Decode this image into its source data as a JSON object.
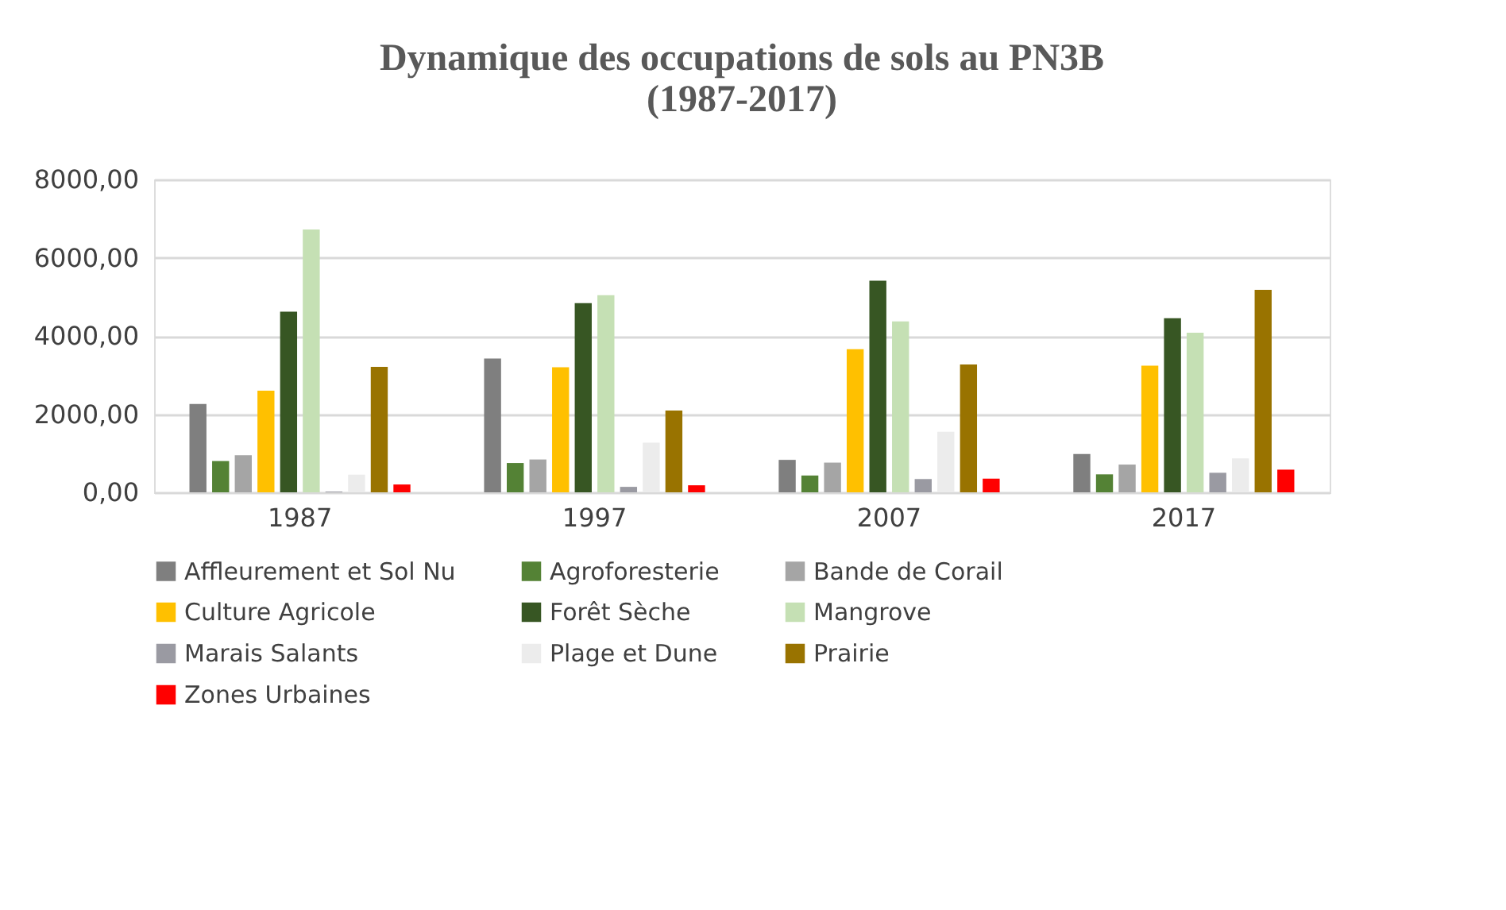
{
  "chart_data": {
    "type": "bar",
    "title": "Dynamique des occupations de sols au PN3B\n(1987-2017)",
    "categories": [
      "1987",
      "1997",
      "2007",
      "2017"
    ],
    "series": [
      {
        "name": "Affleurement et Sol Nu",
        "color": "#7f7f7f",
        "values": [
          2260,
          3420,
          830,
          980
        ]
      },
      {
        "name": "Agroforesterie",
        "color": "#548235",
        "values": [
          800,
          750,
          430,
          460
        ]
      },
      {
        "name": "Bande de Corail",
        "color": "#a5a5a5",
        "values": [
          950,
          840,
          760,
          710
        ]
      },
      {
        "name": "Culture Agricole",
        "color": "#ffc000",
        "values": [
          2600,
          3200,
          3660,
          3240
        ]
      },
      {
        "name": "Forêt Sèche",
        "color": "#375623",
        "values": [
          4620,
          4840,
          5410,
          4450
        ]
      },
      {
        "name": "Mangrove",
        "color": "#c5e0b4",
        "values": [
          6720,
          5040,
          4370,
          4080
        ]
      },
      {
        "name": "Marais Salants",
        "color": "#9a9aa2",
        "values": [
          20,
          140,
          340,
          500
        ]
      },
      {
        "name": "Plage et Dune",
        "color": "#ececec",
        "values": [
          450,
          1270,
          1550,
          870
        ]
      },
      {
        "name": "Prairie",
        "color": "#997300",
        "values": [
          3210,
          2090,
          3270,
          5180
        ]
      },
      {
        "name": "Zones Urbaines",
        "color": "#ff0000",
        "values": [
          200,
          180,
          350,
          580
        ]
      }
    ],
    "ylim": [
      0,
      8000
    ],
    "yticks": [
      {
        "value": 0,
        "label": "0,00"
      },
      {
        "value": 2000,
        "label": "2000,00"
      },
      {
        "value": 4000,
        "label": "4000,00"
      },
      {
        "value": 6000,
        "label": "6000,00"
      },
      {
        "value": 8000,
        "label": "8000,00"
      }
    ],
    "grid": "y",
    "legend": "bottom"
  }
}
